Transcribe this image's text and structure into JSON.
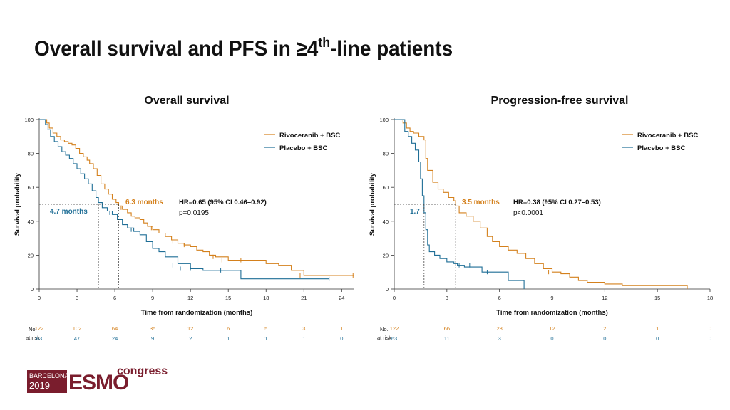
{
  "title": {
    "main": "Overall survival and PFS in ≥4",
    "sup": "th",
    "rest": "-line patients"
  },
  "colors": {
    "rivoceranib": "#d4801c",
    "placebo": "#1f6e96",
    "text": "#222222"
  },
  "logo": {
    "city": "BARCELONA",
    "year": "2019",
    "brand": "ESMO",
    "suffix": "congress"
  },
  "chart_data": [
    {
      "type": "line",
      "subtype": "kaplan-meier",
      "title": "Overall survival",
      "xlabel": "Time from randomization (months)",
      "ylabel": "Survival probability",
      "xlim": [
        0,
        25
      ],
      "ylim": [
        0,
        100
      ],
      "xticks": [
        0,
        3,
        6,
        9,
        12,
        15,
        18,
        21,
        24
      ],
      "yticks": [
        0,
        20,
        40,
        60,
        80,
        100
      ],
      "legend": [
        "Rivoceranib + BSC",
        "Placebo + BSC"
      ],
      "median_rivo": 6.3,
      "median_plac": 4.7,
      "median_rivo_label": "6.3 months",
      "median_plac_label": "4.7 months",
      "hr_text": "HR=0.65 (95% CI 0.46–0.92)",
      "p_text": "p=0.0195",
      "series": [
        {
          "name": "Rivoceranib + BSC",
          "x": [
            0,
            0.6,
            0.8,
            1.1,
            1.4,
            1.7,
            2.0,
            2.3,
            2.6,
            2.9,
            3.2,
            3.5,
            3.8,
            4.0,
            4.3,
            4.6,
            4.9,
            5.2,
            5.5,
            5.8,
            6.1,
            6.3,
            6.6,
            7.0,
            7.3,
            7.6,
            8.0,
            8.3,
            8.6,
            9.0,
            9.5,
            10.0,
            10.5,
            11.0,
            11.5,
            12.0,
            12.5,
            13.0,
            13.5,
            14.0,
            15.0,
            16.0,
            17.0,
            18.0,
            19.0,
            20.0,
            21.0,
            21.5,
            25.0
          ],
          "y": [
            100,
            98,
            95,
            92,
            90,
            88,
            87,
            86,
            85,
            83,
            80,
            78,
            76,
            74,
            71,
            67,
            62,
            59,
            56,
            53,
            51,
            49,
            47,
            45,
            43,
            42,
            41,
            39,
            37,
            35,
            33,
            31,
            29,
            27,
            26,
            25,
            23,
            22,
            20,
            19,
            17,
            17,
            17,
            15,
            14,
            11,
            8,
            8,
            8
          ]
        },
        {
          "name": "Placebo + BSC",
          "x": [
            0,
            0.5,
            0.7,
            0.9,
            1.2,
            1.5,
            1.8,
            2.1,
            2.4,
            2.7,
            3.0,
            3.3,
            3.6,
            3.9,
            4.2,
            4.5,
            4.7,
            5.0,
            5.4,
            5.8,
            6.2,
            6.6,
            7.0,
            7.5,
            8.0,
            8.5,
            9.0,
            9.5,
            10.0,
            11.0,
            12.0,
            13.0,
            15.0,
            16.0,
            23.0
          ],
          "y": [
            100,
            97,
            94,
            90,
            87,
            84,
            81,
            79,
            77,
            74,
            71,
            68,
            65,
            62,
            58,
            54,
            51,
            48,
            46,
            44,
            41,
            38,
            36,
            34,
            32,
            28,
            24,
            22,
            19,
            15,
            12,
            11,
            11,
            6,
            6
          ]
        }
      ],
      "censor_rivo": [
        [
          6.5,
          48
        ],
        [
          8.9,
          36
        ],
        [
          10.6,
          28
        ],
        [
          11.5,
          26
        ],
        [
          13.8,
          19
        ],
        [
          14.5,
          17
        ],
        [
          16.0,
          17
        ],
        [
          20.7,
          8
        ],
        [
          24.9,
          8
        ]
      ],
      "censor_plac": [
        [
          5.6,
          45
        ],
        [
          7.3,
          35
        ],
        [
          10.6,
          14
        ],
        [
          11.2,
          12
        ],
        [
          12.0,
          12
        ],
        [
          14.4,
          11
        ],
        [
          23.0,
          6
        ]
      ],
      "risk_times": [
        0,
        3,
        6,
        9,
        12,
        15,
        18,
        21,
        24
      ],
      "risk_rivo": [
        "122",
        "102",
        "64",
        "35",
        "12",
        "6",
        "5",
        "3",
        "1"
      ],
      "risk_plac": [
        "63",
        "47",
        "24",
        "9",
        "2",
        "1",
        "1",
        "1",
        "0"
      ]
    },
    {
      "type": "line",
      "subtype": "kaplan-meier",
      "title": "Progression-free survival",
      "xlabel": "Time from randomization (months)",
      "ylabel": "Survival probability",
      "xlim": [
        0,
        18
      ],
      "ylim": [
        0,
        100
      ],
      "xticks": [
        0,
        3,
        6,
        9,
        12,
        15,
        18
      ],
      "yticks": [
        0,
        20,
        40,
        60,
        80,
        100
      ],
      "legend": [
        "Rivoceranib + BSC",
        "Placebo + BSC"
      ],
      "median_rivo": 3.5,
      "median_plac": 1.7,
      "median_rivo_label": "3.5 months",
      "median_plac_label": "1.7",
      "hr_text": "HR=0.38 (95% CI 0.27–0.53)",
      "p_text": "p<0.0001",
      "series": [
        {
          "name": "Rivoceranib + BSC",
          "x": [
            0,
            0.5,
            0.7,
            0.9,
            1.1,
            1.4,
            1.7,
            1.8,
            1.9,
            2.2,
            2.5,
            2.8,
            3.1,
            3.4,
            3.5,
            3.7,
            4.1,
            4.5,
            4.9,
            5.3,
            5.6,
            6.0,
            6.5,
            7.0,
            7.5,
            8.0,
            8.5,
            9.0,
            9.5,
            10.0,
            10.5,
            11.0,
            12.0,
            13.0,
            14.0,
            16.7
          ],
          "y": [
            100,
            98,
            95,
            93,
            92,
            90,
            88,
            77,
            70,
            63,
            59,
            57,
            54,
            52,
            49,
            45,
            43,
            40,
            36,
            31,
            28,
            25,
            23,
            21,
            18,
            15,
            12,
            10,
            9,
            7,
            5,
            4,
            3,
            2,
            2,
            0
          ]
        },
        {
          "name": "Placebo + BSC",
          "x": [
            0,
            0.6,
            0.8,
            1.0,
            1.2,
            1.4,
            1.5,
            1.6,
            1.7,
            1.8,
            1.9,
            2.0,
            2.3,
            2.6,
            3.0,
            3.4,
            3.6,
            4.0,
            5.0,
            6.0,
            6.5,
            7.0,
            7.4
          ],
          "y": [
            100,
            93,
            90,
            86,
            82,
            75,
            65,
            55,
            45,
            35,
            26,
            22,
            20,
            18,
            16,
            15,
            14,
            13,
            10,
            10,
            5,
            5,
            0
          ]
        }
      ],
      "censor_rivo": [
        [
          8.8,
          10
        ]
      ],
      "censor_plac": [
        [
          3.7,
          14
        ],
        [
          4.3,
          14
        ],
        [
          5.3,
          10
        ]
      ],
      "risk_times": [
        0,
        3,
        6,
        9,
        12,
        15,
        18
      ],
      "risk_rivo": [
        "122",
        "66",
        "28",
        "12",
        "2",
        "1",
        "0"
      ],
      "risk_plac": [
        "63",
        "11",
        "3",
        "0",
        "0",
        "0",
        "0"
      ]
    }
  ],
  "risk_label_1": "No.",
  "risk_label_2": "at risk"
}
